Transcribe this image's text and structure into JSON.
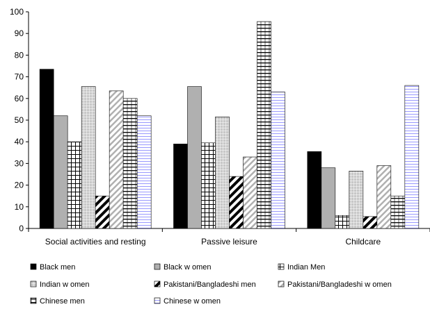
{
  "chart_data": {
    "type": "bar",
    "categories": [
      "Social activities and resting",
      "Passive leisure",
      "Childcare"
    ],
    "ylim": [
      0,
      100
    ],
    "yticks": [
      0,
      10,
      20,
      30,
      40,
      50,
      60,
      70,
      80,
      90,
      100
    ],
    "grid": false,
    "legend_placement": "bottom",
    "series": [
      {
        "name": "Black men",
        "values": [
          73.5,
          39,
          35.5
        ],
        "pattern": "solid-black"
      },
      {
        "name": "Black w omen",
        "values": [
          52,
          65.5,
          28
        ],
        "pattern": "solid-gray"
      },
      {
        "name": "Indian Men",
        "values": [
          40,
          39.5,
          6
        ],
        "pattern": "grid"
      },
      {
        "name": "Indian w omen",
        "values": [
          65.5,
          51.5,
          26.5
        ],
        "pattern": "gray-vertical"
      },
      {
        "name": "Pakistani/Bangladeshi men",
        "values": [
          15,
          24,
          5.5
        ],
        "pattern": "diagonal-bold"
      },
      {
        "name": "Pakistani/Bangladeshi w omen",
        "values": [
          63.5,
          33,
          29
        ],
        "pattern": "diagonal-gray"
      },
      {
        "name": "Chinese men",
        "values": [
          60,
          95.5,
          15
        ],
        "pattern": "horizontal-bold"
      },
      {
        "name": "Chinese w omen",
        "values": [
          52,
          63,
          66
        ],
        "pattern": "horizontal-blue"
      }
    ],
    "colors": {
      "axis": "#000000",
      "black": "#000000",
      "gray": "#b0b0b0",
      "blue_line": "#9999ff"
    }
  }
}
